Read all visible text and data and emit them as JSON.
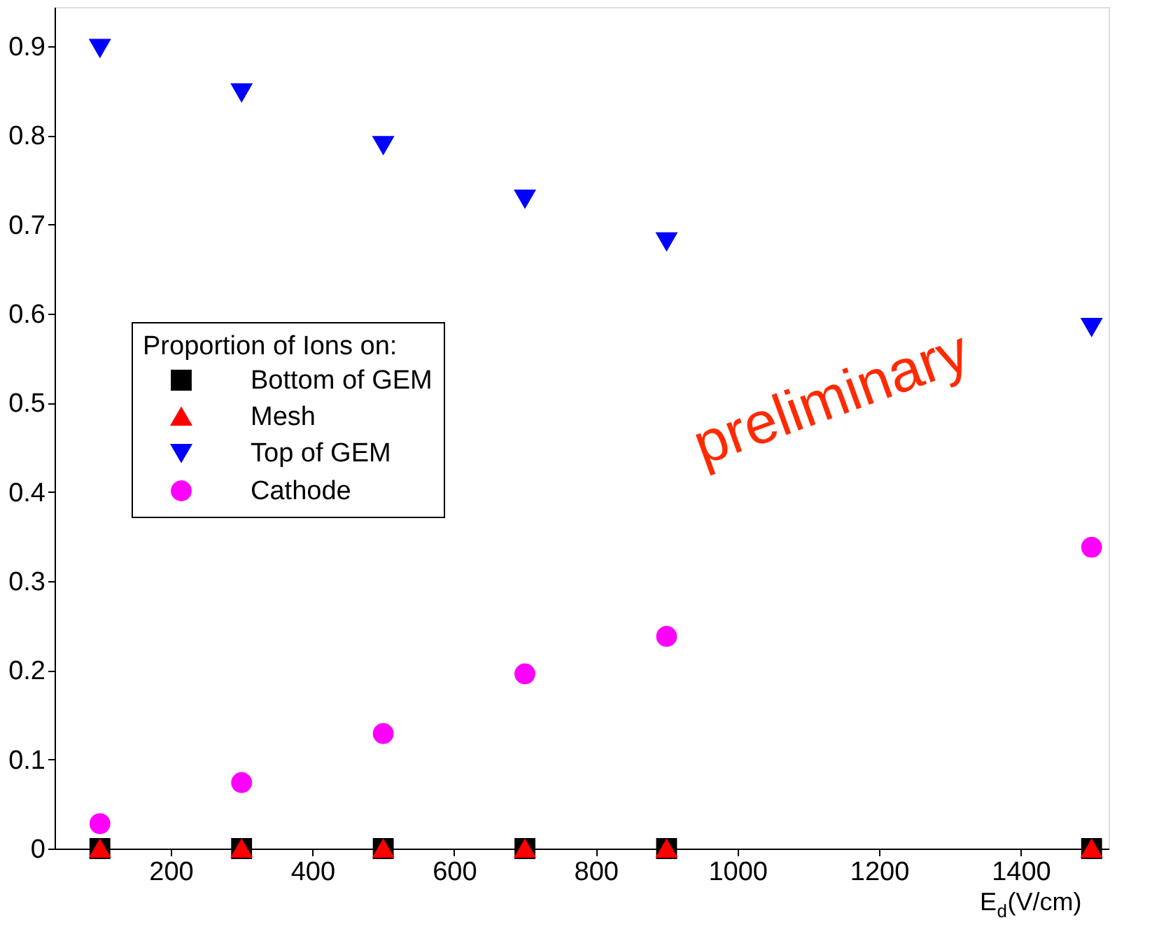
{
  "chart_data": {
    "type": "scatter",
    "xlabel": "E$_{d}$(V/cm)",
    "legend_title": "Proportion of Ions on:",
    "legend": "left",
    "x": [
      100,
      300,
      500,
      700,
      900,
      1500
    ],
    "series": [
      {
        "name": "Bottom of GEM",
        "color": "#000000",
        "marker": "square",
        "values": [
          0,
          0,
          0,
          0,
          0,
          0
        ]
      },
      {
        "name": "Mesh",
        "color": "#ff0000",
        "marker": "triangle",
        "values": [
          0,
          0,
          0,
          0,
          0,
          0
        ]
      },
      {
        "name": "Top of GEM",
        "color": "#0000ff",
        "marker": "triangle-down",
        "values": [
          0.898,
          0.848,
          0.789,
          0.729,
          0.681,
          0.585
        ]
      },
      {
        "name": "Cathode",
        "color": "#ff00ff",
        "marker": "circle",
        "values": [
          0.028,
          0.074,
          0.129,
          0.196,
          0.238,
          0.338
        ]
      }
    ],
    "xlim": [
      36,
      1524
    ],
    "xticks": [
      200,
      400,
      600,
      800,
      1000,
      1200,
      1400
    ],
    "ylim": [
      0,
      0.944
    ],
    "yticks": [
      0,
      0.1,
      0.2,
      0.3,
      0.4,
      0.5,
      0.6,
      0.7,
      0.8,
      0.9
    ],
    "grid": false,
    "annotations": [
      "preliminary"
    ]
  }
}
